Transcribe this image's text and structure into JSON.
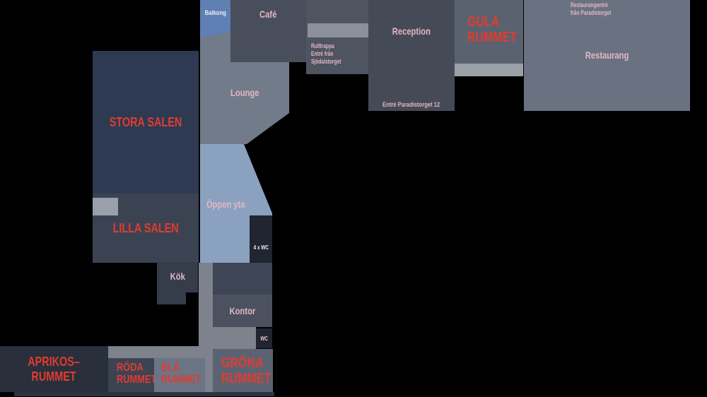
{
  "app": {
    "title": "Floor plan"
  },
  "palette": {
    "background": "#000000",
    "room_label_red": "#e23b30",
    "room_label_pink": "#e4b6c3",
    "room_label_white": "#edeff4",
    "dark_navy_room": "#2d3a52",
    "dark_slate_room": "#3b4353",
    "balcony_blue": "#5e80b4",
    "open_area_blue": "#8ba1c0",
    "lounge_gray": "#717b8a",
    "corridor_gray": "#7d828c",
    "door_light_gray": "#9aa0a8"
  },
  "rooms": {
    "stora_salen": {
      "label": "STORA SALEN"
    },
    "lilla_salen": {
      "label": "LILLA SALEN"
    },
    "balkong": {
      "label": "Balkong"
    },
    "cafe": {
      "label": "Café"
    },
    "lounge": {
      "label": "Lounge"
    },
    "oppen_yta": {
      "label": "Öppen yta"
    },
    "rulltrappa": {
      "note_lines": [
        "Rulltrappa",
        "Entré från Sjödalstorget"
      ]
    },
    "reception": {
      "label": "Reception",
      "entrance_note": "Entré Paradistorget 12"
    },
    "gula_rummet": {
      "label_lines": [
        "GULA",
        "RUMMET"
      ]
    },
    "restaurang": {
      "label": "Restaurang",
      "entrance_note_lines": [
        "Restaurangentré",
        "från Paradistorget"
      ]
    },
    "wc4": {
      "label": "4 x WC"
    },
    "kok": {
      "label": "Kök"
    },
    "kontor": {
      "label": "Kontor"
    },
    "wc": {
      "label": "WC"
    },
    "aprikos_rummet": {
      "label_lines": [
        "APRIKOS–",
        "RUMMET"
      ]
    },
    "roda_rummet": {
      "label_lines": [
        "RÖDA",
        "RUMMET"
      ]
    },
    "bla_rummet": {
      "label_lines": [
        "BLÅ",
        "RUMMET"
      ]
    },
    "grona_rummet": {
      "label_lines": [
        "GRÖNA",
        "RUMMET"
      ]
    }
  }
}
